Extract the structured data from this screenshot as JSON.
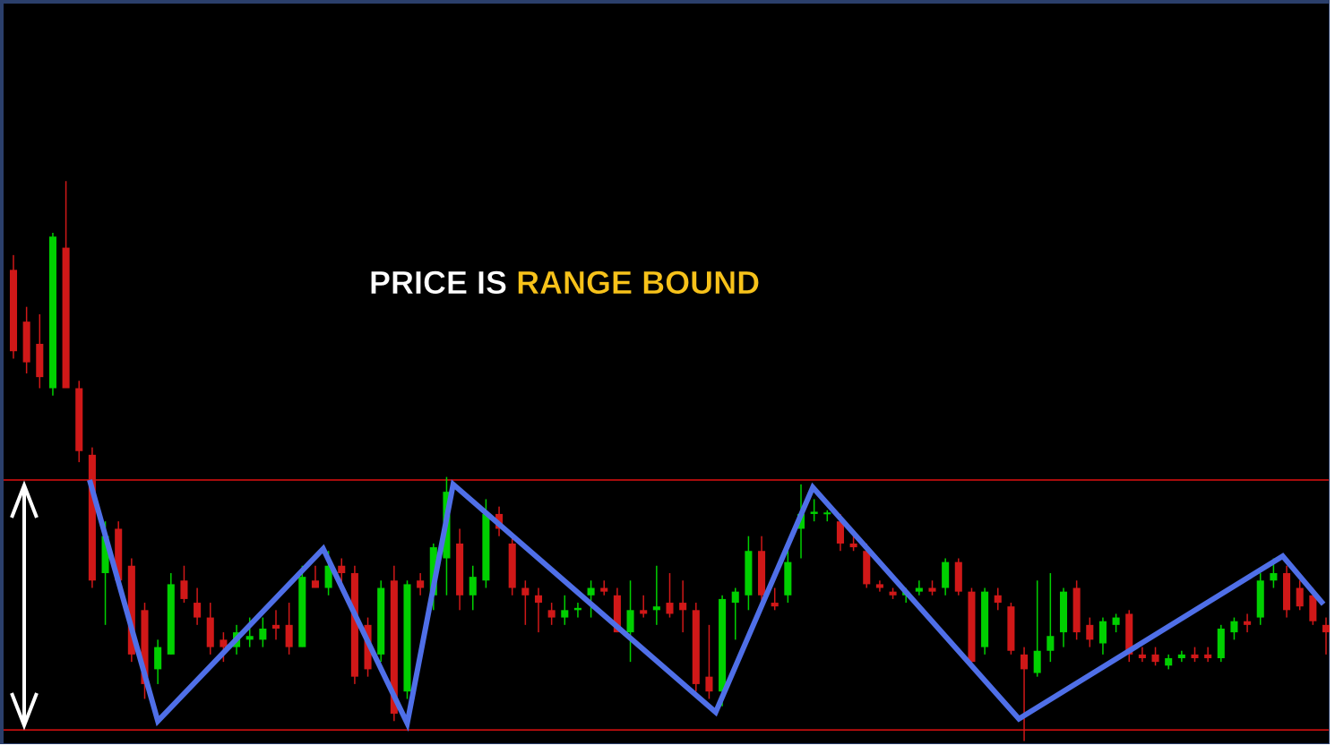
{
  "chart_data": {
    "type": "candlestick",
    "annotations": [
      {
        "text": "PRICE IS",
        "color": "#ffffff"
      },
      {
        "text": "RANGE BOUND",
        "color": "#f7c21a"
      }
    ],
    "up_color": "#00d000",
    "down_color": "#d01818",
    "xlim": [
      0,
      100
    ],
    "ylim": [
      0,
      100
    ],
    "open": [
      64,
      57,
      54,
      48,
      67,
      48,
      39,
      23,
      29,
      24,
      18,
      10,
      12,
      22,
      19,
      17,
      14,
      13,
      14,
      14,
      16,
      16,
      13,
      22,
      21,
      24,
      23,
      16,
      12,
      22,
      7,
      22,
      20,
      25,
      27,
      20,
      22,
      31,
      27,
      21,
      20,
      18,
      17,
      18,
      20,
      21,
      20,
      15,
      18,
      18,
      19,
      19,
      18,
      9,
      7,
      19,
      20,
      26,
      19,
      20,
      29,
      31,
      31,
      30,
      27,
      26,
      21.5,
      20.5,
      20,
      20.5,
      21,
      21,
      24.5,
      20.5,
      13,
      20,
      18.5,
      12,
      9.5,
      12.5,
      15,
      21,
      16,
      13.5,
      16,
      17.5,
      12,
      12,
      10.5,
      11.5,
      12,
      12,
      11.5,
      15,
      16.5,
      17,
      22,
      23,
      21,
      20,
      16
    ],
    "high": [
      66,
      59,
      58,
      69,
      76,
      49,
      40,
      30,
      30,
      25,
      19,
      14,
      23,
      24,
      21,
      19,
      15,
      16,
      17,
      17,
      18,
      19,
      24,
      24,
      26,
      25,
      24,
      17,
      22,
      24,
      22,
      23,
      27,
      36,
      29,
      24,
      33,
      32,
      28,
      22,
      21,
      19,
      20,
      19,
      22,
      22,
      21,
      22,
      20,
      24,
      23,
      22,
      19,
      16,
      20,
      21,
      28,
      28,
      21,
      26,
      35,
      33,
      31.5,
      31,
      28,
      27,
      22,
      21,
      21,
      22,
      22,
      25,
      25,
      21,
      21,
      21,
      19,
      13,
      22,
      23,
      21,
      22,
      17,
      17,
      17.5,
      18,
      13,
      13,
      12,
      12.5,
      13,
      13,
      16,
      17,
      17.5,
      23,
      25,
      24,
      22,
      21,
      17
    ],
    "low": [
      52,
      50,
      48,
      47,
      48,
      38,
      21,
      16,
      22,
      11,
      6,
      8,
      12,
      19,
      16,
      12,
      11,
      12,
      13,
      13,
      14,
      12,
      13,
      21,
      20,
      21,
      8,
      9,
      11,
      3,
      6,
      20,
      18,
      20,
      18,
      18,
      21,
      28,
      20,
      16,
      15,
      16,
      16,
      17,
      17,
      20,
      15,
      11,
      17,
      16,
      17,
      15,
      7,
      6,
      5,
      14,
      18,
      19,
      18,
      19,
      25,
      30,
      30,
      26,
      26,
      21,
      20.5,
      19.5,
      19,
      20,
      20,
      20,
      20,
      10,
      12,
      18,
      12,
      0.3,
      9,
      11,
      13,
      14,
      13,
      12,
      15,
      11,
      11,
      10.5,
      10,
      11,
      11,
      11,
      11,
      14,
      15,
      16,
      21,
      17,
      18,
      16,
      12
    ],
    "close": [
      53,
      51.5,
      49.5,
      68.5,
      48,
      39.5,
      22,
      28,
      22,
      12,
      8,
      13,
      21.5,
      19.5,
      17,
      13,
      13,
      15,
      14.5,
      15.5,
      15.5,
      13,
      22.5,
      21,
      24,
      23,
      9,
      10,
      21,
      4,
      21.5,
      21,
      26.5,
      34,
      20,
      22.5,
      31,
      29,
      21,
      20,
      19,
      17,
      18,
      18.3,
      21,
      20.5,
      15,
      18,
      17.5,
      18.5,
      17.5,
      18,
      8,
      7,
      19.5,
      20.5,
      26,
      20,
      18.5,
      24.5,
      31,
      31.3,
      31.2,
      27,
      26.5,
      21.5,
      21,
      20,
      20.5,
      21,
      20.5,
      24.5,
      20.5,
      11,
      20.5,
      19,
      12.5,
      10,
      12.5,
      14.5,
      20.5,
      15,
      14,
      16.5,
      17,
      12,
      11.5,
      11,
      11.5,
      12,
      11.5,
      11.5,
      15.5,
      16.5,
      16,
      22,
      23,
      18,
      18.5,
      16.5,
      15
    ],
    "levels": {
      "values": [
        35.6,
        1.8
      ],
      "color": "#e01010"
    },
    "zigzag": {
      "x": [
        5.8,
        11,
        23.6,
        30,
        33.5,
        53.5,
        60.9,
        76.6,
        96.7,
        99.8
      ],
      "values": [
        35.6,
        3.0,
        26.3,
        2.7,
        35.0,
        4.2,
        34.6,
        3.3,
        25.3,
        18.8
      ],
      "color": "#4f6fe8"
    }
  }
}
